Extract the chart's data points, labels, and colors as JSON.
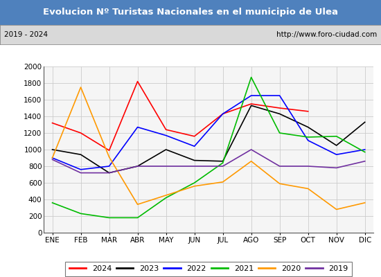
{
  "title": "Evolucion Nº Turistas Nacionales en el municipio de Ulea",
  "subtitle_left": "2019 - 2024",
  "subtitle_right": "http://www.foro-ciudad.com",
  "title_bg_color": "#4f81bd",
  "title_text_color": "#ffffff",
  "plot_bg_color": "#e8e8e8",
  "months": [
    "ENE",
    "FEB",
    "MAR",
    "ABR",
    "MAY",
    "JUN",
    "JUL",
    "AGO",
    "SEP",
    "OCT",
    "NOV",
    "DIC"
  ],
  "ylim": [
    0,
    2000
  ],
  "yticks": [
    0,
    200,
    400,
    600,
    800,
    1000,
    1200,
    1400,
    1600,
    1800,
    2000
  ],
  "series": {
    "2024": {
      "color": "#ff0000",
      "data": [
        1320,
        1200,
        990,
        1820,
        1240,
        1160,
        1430,
        1550,
        1500,
        1460,
        null,
        null
      ]
    },
    "2023": {
      "color": "#000000",
      "data": [
        1000,
        940,
        720,
        800,
        1000,
        870,
        860,
        1530,
        1430,
        1270,
        1050,
        1330
      ]
    },
    "2022": {
      "color": "#0000ff",
      "data": [
        900,
        760,
        800,
        1270,
        1170,
        1040,
        1430,
        1650,
        1650,
        1110,
        940,
        1000
      ]
    },
    "2021": {
      "color": "#00bb00",
      "data": [
        360,
        230,
        180,
        180,
        420,
        600,
        840,
        1870,
        1200,
        1150,
        1160,
        970
      ]
    },
    "2020": {
      "color": "#ff9900",
      "data": [
        900,
        1750,
        910,
        340,
        450,
        560,
        610,
        860,
        590,
        530,
        280,
        360
      ]
    },
    "2019": {
      "color": "#7030a0",
      "data": [
        880,
        720,
        720,
        800,
        800,
        800,
        800,
        1000,
        800,
        800,
        780,
        860
      ]
    }
  },
  "legend_order": [
    "2024",
    "2023",
    "2022",
    "2021",
    "2020",
    "2019"
  ]
}
